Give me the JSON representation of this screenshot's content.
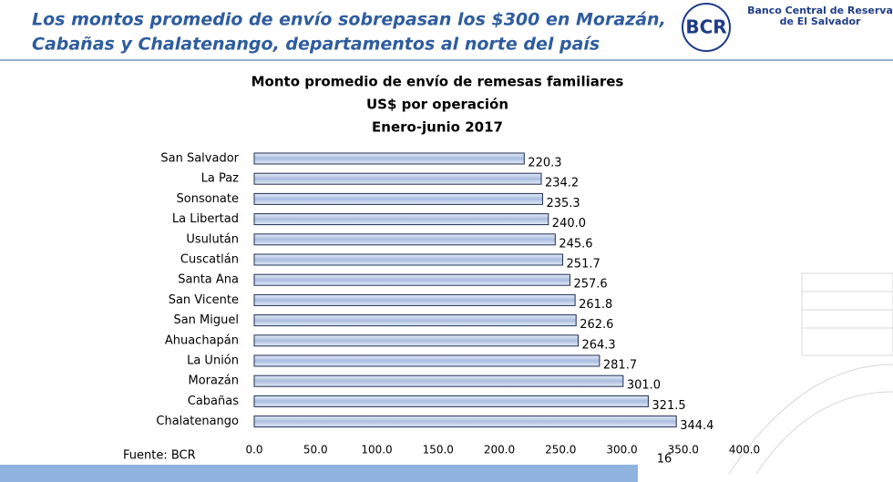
{
  "header": {
    "title": [
      "Los montos promedio de envío sobrepasan los $300 en Morazán,",
      "Cabañas y Chalatenango, departamentos al norte del país"
    ],
    "logo": "BCR",
    "bank": [
      "Banco Central de Reserva",
      "de El Salvador"
    ]
  },
  "chart_data": {
    "type": "bar",
    "orientation": "horizontal",
    "title": [
      "Monto promedio de envío de remesas familiares",
      "US$ por operación",
      "Enero-junio 2017"
    ],
    "categories": [
      "San Salvador",
      "La Paz",
      "Sonsonate",
      "La Libertad",
      "Usulután",
      "Cuscatlán",
      "Santa Ana",
      "San Vicente",
      "San Miguel",
      "Ahuachapán",
      "La Unión",
      "Morazán",
      "Cabañas",
      "Chalatenango"
    ],
    "values": [
      220.3,
      234.2,
      235.3,
      240.0,
      245.6,
      251.7,
      257.6,
      261.8,
      262.6,
      264.3,
      281.7,
      301.0,
      321.5,
      344.4
    ],
    "value_labels": [
      "220.3",
      "234.2",
      "235.3",
      "240.0",
      "245.6",
      "251.7",
      "257.6",
      "261.8",
      "262.6",
      "264.3",
      "281.7",
      "301.0",
      "321.5",
      "344.4"
    ],
    "color": "#b9c9e6",
    "xlim": [
      0,
      400
    ],
    "xticks": [
      {
        "value": 0,
        "label": "0.0"
      },
      {
        "value": 50,
        "label": "50.0"
      },
      {
        "value": 100,
        "label": "100.0"
      },
      {
        "value": 150,
        "label": "150.0"
      },
      {
        "value": 200,
        "label": "200.0"
      },
      {
        "value": 250,
        "label": "250.0"
      },
      {
        "value": 300,
        "label": "300.0"
      },
      {
        "value": 350,
        "label": "350.0"
      },
      {
        "value": 400,
        "label": "400.0"
      }
    ],
    "source": "Fuente: BCR"
  },
  "page_number": "16"
}
